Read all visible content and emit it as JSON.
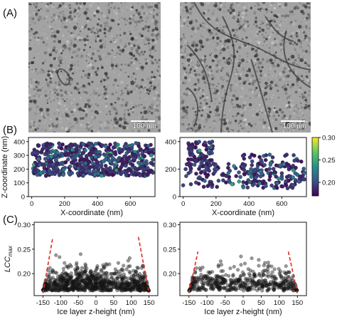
{
  "panels": {
    "a_label": "(A)",
    "b_label": "(B)",
    "c_label": "(C)"
  },
  "tomograms": [
    {
      "scale_bar_label": "100 nm"
    },
    {
      "scale_bar_label": "100 nm"
    }
  ],
  "colorbar": {
    "ticks": [
      "0.30",
      "0.25",
      "0.20"
    ],
    "min": 0.17,
    "max": 0.3,
    "colormap": "viridis"
  },
  "chart_data": [
    {
      "type": "scatter",
      "panel": "B-left",
      "xlabel": "X-coordinate (nm)",
      "ylabel": "Z-coordinate (nm)",
      "xlim": [
        -20,
        750
      ],
      "ylim": [
        0,
        430
      ],
      "xticks": [
        "0",
        "200",
        "400",
        "600"
      ],
      "yticks": [
        "0",
        "100",
        "200",
        "300",
        "400"
      ],
      "color_by": "LCCmax",
      "z_band": [
        150,
        390
      ],
      "n_points": 620
    },
    {
      "type": "scatter",
      "panel": "B-right",
      "xlabel": "X-coordinate (nm)",
      "xlim": [
        -20,
        750
      ],
      "ylim": [
        0,
        430
      ],
      "xticks": [
        "0",
        "200",
        "400",
        "600"
      ],
      "yticks": [
        "0",
        "200",
        "400"
      ],
      "color_by": "LCCmax",
      "n_points": 330
    },
    {
      "type": "scatter",
      "panel": "C-left",
      "xlabel": "Ice layer z-height (nm)",
      "ylabel": "LCCmax",
      "xlim": [
        -175,
        175
      ],
      "ylim": [
        0.155,
        0.305
      ],
      "xticks": [
        "-150",
        "-100",
        "-50",
        "0",
        "50",
        "100",
        "150"
      ],
      "yticks": [
        "0.20",
        "0.25",
        "0.30"
      ],
      "dashed_lines": [
        {
          "x": [
            -150,
            -122
          ],
          "y": [
            0.16,
            0.275
          ]
        },
        {
          "x": [
            120,
            150
          ],
          "y": [
            0.275,
            0.16
          ]
        }
      ],
      "n_points": 900
    },
    {
      "type": "scatter",
      "panel": "C-right",
      "xlabel": "Ice layer z-height (nm)",
      "xlim": [
        -175,
        175
      ],
      "ylim": [
        0.155,
        0.305
      ],
      "xticks": [
        "-150",
        "-100",
        "-50",
        "0",
        "50",
        "100",
        "150"
      ],
      "yticks": [
        "0.20",
        "0.25",
        "0.30"
      ],
      "dashed_lines": [
        {
          "x": [
            -150,
            -125
          ],
          "y": [
            0.16,
            0.245
          ]
        },
        {
          "x": [
            125,
            150
          ],
          "y": [
            0.245,
            0.16
          ]
        }
      ],
      "n_points": 500
    }
  ]
}
